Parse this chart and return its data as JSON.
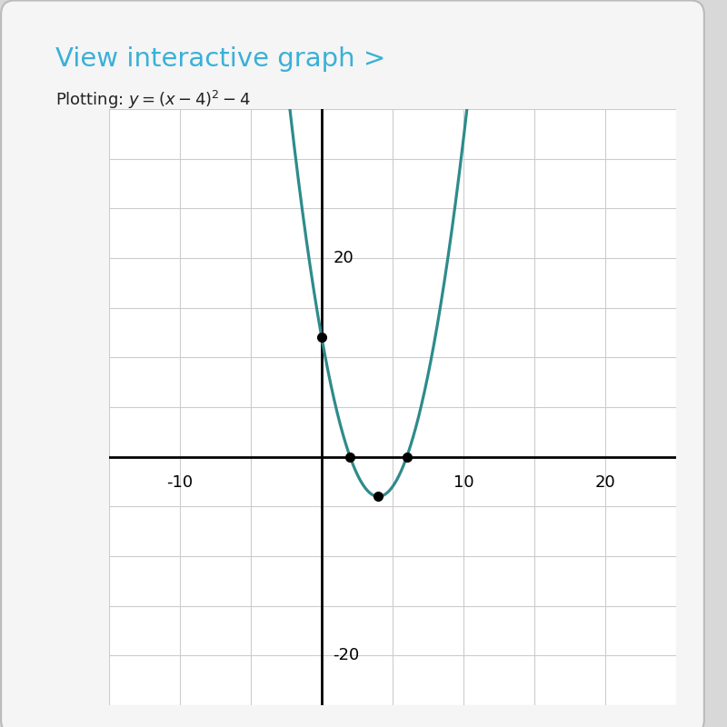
{
  "title": "View interactive graph >",
  "title_color": "#3ab0d8",
  "curve_color": "#2e8b8b",
  "outer_bg": "#d8d8d8",
  "card_bg": "#f5f5f5",
  "plot_bg": "#ffffff",
  "grid_color": "#cccccc",
  "xmin": -15,
  "xmax": 25,
  "ymin": -25,
  "ymax": 35,
  "key_points": [
    [
      0,
      12
    ],
    [
      2,
      0
    ],
    [
      6,
      0
    ],
    [
      4,
      -4
    ]
  ],
  "x_label_vals": [
    -10,
    10,
    20
  ],
  "y_label_vals": [
    20,
    -20
  ]
}
